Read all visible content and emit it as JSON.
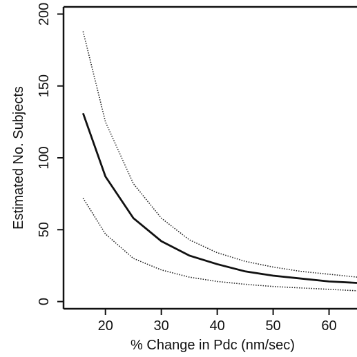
{
  "chart_data": {
    "type": "line",
    "title": "",
    "xlabel": "% Change in Pdc (nm/sec)",
    "ylabel": "Estimated No. Subjects",
    "xlim": [
      12.5,
      65
    ],
    "ylim": [
      -5,
      205
    ],
    "xticks": [
      20,
      30,
      40,
      50,
      60
    ],
    "yticks": [
      0,
      50,
      100,
      150,
      200
    ],
    "grid": false,
    "legend": "none",
    "series": [
      {
        "style": "dotted",
        "color": "#222222",
        "x": [
          16,
          20,
          25,
          30,
          35,
          40,
          45,
          50,
          55,
          60,
          65
        ],
        "y": [
          188,
          125,
          82,
          58,
          43,
          34,
          28,
          24,
          21,
          19,
          17
        ]
      },
      {
        "style": "solid",
        "color": "#111111",
        "x": [
          16,
          20,
          25,
          30,
          35,
          40,
          45,
          50,
          55,
          60,
          65
        ],
        "y": [
          131,
          87,
          58,
          42,
          32,
          26,
          21,
          18,
          16,
          14,
          13
        ]
      },
      {
        "style": "dotted",
        "color": "#222222",
        "x": [
          16,
          20,
          25,
          30,
          35,
          40,
          45,
          50,
          55,
          60,
          65
        ],
        "y": [
          72,
          47,
          30,
          22,
          17,
          14,
          12,
          10.5,
          9.5,
          8.5,
          7.5
        ]
      }
    ]
  }
}
